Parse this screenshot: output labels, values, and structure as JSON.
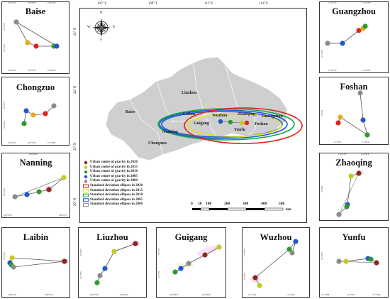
{
  "colors": {
    "y2020": "#8b2a1a",
    "y2015": "#c8c81e",
    "y2010": "#2e9a2e",
    "y2005": "#2456c8",
    "y2000": "#8c8c8c",
    "e2020": "#e0241a",
    "e2015": "#e6e01e",
    "e2010": "#1aa84a",
    "e2005": "#1a5ad8",
    "e2000": "#909090"
  },
  "map": {
    "lon_ticks": [
      "105° E",
      "108° E",
      "111° E",
      "114° E"
    ],
    "lat_ticks": [
      "26° N",
      "24° N",
      "22° N",
      "20° N"
    ],
    "compass": {
      "n": "N",
      "s": "S",
      "w": "W",
      "e": "E"
    },
    "cities": [
      {
        "name": "Liuzhou"
      },
      {
        "name": "Baise"
      },
      {
        "name": "Laibin"
      },
      {
        "name": "Guigang"
      },
      {
        "name": "Wuzhou"
      },
      {
        "name": "Zhaoqing"
      },
      {
        "name": "Guangzhou"
      },
      {
        "name": "Foshan"
      },
      {
        "name": "Yunfu"
      },
      {
        "name": "Nanning"
      },
      {
        "name": "Chongzuo"
      }
    ],
    "legend": [
      "Urban centre of gravity in 2020",
      "Urban centre of gravity in 2015",
      "Urban centre of gravity in 2010",
      "Urban centre of gravity in 2005",
      "Urban centre of gravity in 2000",
      "Standard deviation ellipses in 2020",
      "Standard deviation ellipses in 2015",
      "Standard deviation ellipses in 2010",
      "Standard deviation ellipses in 2005",
      "Standard deviation ellipses in 2000"
    ],
    "scale_bar": {
      "ticks": [
        "0",
        "50",
        "100",
        "200",
        "300",
        "400",
        "500"
      ],
      "unit": "km"
    }
  },
  "panels": [
    {
      "name": "Baise",
      "xticks": [
        "106°36'E",
        "106°38'E",
        "106°40'E"
      ],
      "yticks": [
        "23°56'N",
        "23°54'N"
      ]
    },
    {
      "name": "Chongzuo",
      "xticks": [
        "107°24'E",
        "107°26'E",
        "107°28'E"
      ],
      "yticks": [
        "22°26'N",
        "22°24'N"
      ]
    },
    {
      "name": "Nanning",
      "xticks": [
        "108°18'E",
        "108°20'E",
        "108°22'E"
      ],
      "yticks": [
        "22°50'N"
      ]
    },
    {
      "name": "Laibin",
      "xticks": [
        "109°12'E",
        "109°14'E"
      ],
      "yticks": [
        "23°45'N"
      ]
    },
    {
      "name": "Liuzhou",
      "xticks": [
        "109°24'E",
        "109°26'E"
      ],
      "yticks": [
        "24°20'N",
        "24°18'N"
      ]
    },
    {
      "name": "Guigang",
      "xticks": [
        "109°34'E",
        "109°36'E"
      ],
      "yticks": [
        "23°6'N",
        "23°4'N"
      ]
    },
    {
      "name": "Wuzhou",
      "xticks": [
        "111°16'E",
        "111°18'E"
      ],
      "yticks": [
        "23°30'N",
        "23°28'N"
      ]
    },
    {
      "name": "Yunfu",
      "xticks": [
        "111°48'E",
        "111°52'E",
        "111°56'E"
      ],
      "yticks": [
        "22°56'N"
      ]
    },
    {
      "name": "Zhaoqing",
      "xticks": [
        "112°27'E",
        "112°30'E"
      ],
      "yticks": [
        "23°6'N"
      ]
    },
    {
      "name": "Foshan",
      "xticks": [
        "113°3'E",
        "113°6'E"
      ],
      "yticks": [
        "23°0'N"
      ]
    },
    {
      "name": "Guangzhou",
      "xticks": [
        "113°15'E",
        "113°18'E"
      ],
      "yticks": [
        "23°12'N"
      ]
    }
  ]
}
